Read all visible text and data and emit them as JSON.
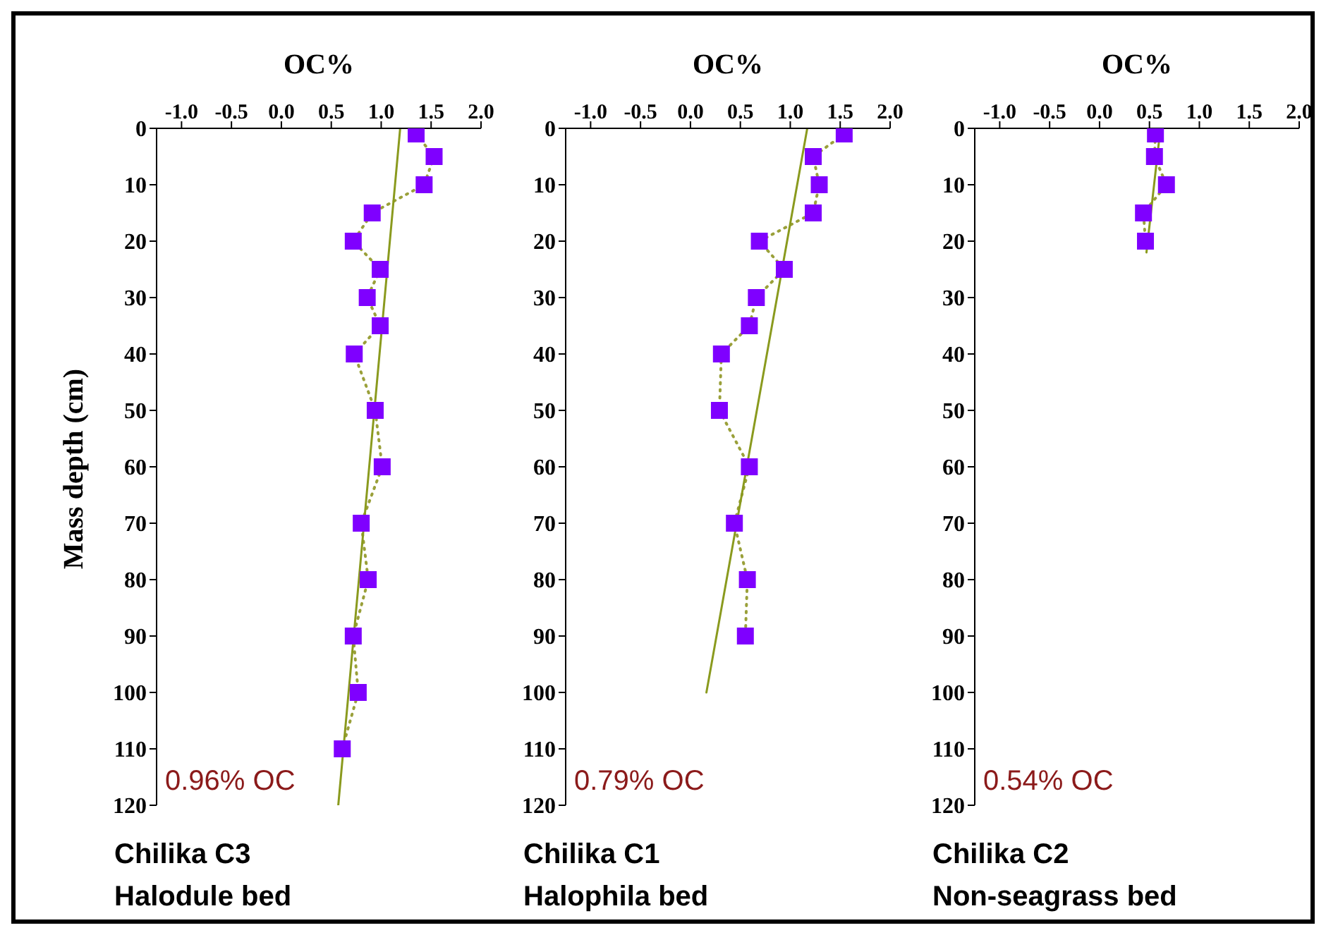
{
  "chart_data": [
    {
      "type": "scatter",
      "xlabel": "OC%",
      "ylabel": "Mass depth (cm)",
      "xlim": [
        -1.25,
        2.0
      ],
      "xticks": [
        {
          "value": -1,
          "label": "-1.0"
        },
        -0.5,
        {
          "value": 0,
          "label": "0.0"
        },
        0.5,
        {
          "value": 1,
          "label": "1.0"
        },
        1.5,
        {
          "value": 2,
          "label": "2.0"
        }
      ],
      "ylim": [
        120,
        0
      ],
      "yticks": [
        0,
        10,
        20,
        30,
        40,
        50,
        60,
        70,
        80,
        90,
        100,
        110,
        120
      ],
      "annotations": [
        "0.96% OC",
        "Chilika C3",
        "Halodule bed"
      ],
      "series": [
        {
          "marker": "square",
          "color": "#7f00ff",
          "x": [
            1.35,
            1.53,
            1.43,
            0.91,
            0.72,
            0.99,
            0.86,
            0.99,
            0.73,
            0.94,
            1.01,
            0.8,
            0.87,
            0.72,
            0.77,
            0.61
          ],
          "values": [
            1,
            5,
            10,
            15,
            20,
            25,
            30,
            35,
            40,
            50,
            60,
            70,
            80,
            90,
            100,
            110
          ]
        },
        {
          "type": "line",
          "marker": "none",
          "line_style": "dotted",
          "color": "#9aa03a",
          "x": [
            1.35,
            1.53,
            1.43,
            0.91,
            0.72,
            0.99,
            0.86,
            0.99,
            0.73,
            0.94,
            1.01,
            0.8,
            0.87,
            0.72,
            0.77,
            0.61
          ],
          "values": [
            1,
            5,
            10,
            15,
            20,
            25,
            30,
            35,
            40,
            50,
            60,
            70,
            80,
            90,
            100,
            110
          ]
        },
        {
          "type": "line",
          "marker": "none",
          "line_style": "solid",
          "color": "#8a9a1e",
          "x": [
            1.19,
            0.57
          ],
          "values": [
            0,
            120
          ]
        }
      ]
    },
    {
      "type": "scatter",
      "xlabel": "OC%",
      "xlim": [
        -1.25,
        2.0
      ],
      "xticks": [
        {
          "value": -1,
          "label": "-1.0"
        },
        -0.5,
        {
          "value": 0,
          "label": "0.0"
        },
        0.5,
        {
          "value": 1,
          "label": "1.0"
        },
        1.5,
        {
          "value": 2,
          "label": "2.0"
        }
      ],
      "ylim": [
        120,
        0
      ],
      "yticks": [
        0,
        10,
        20,
        30,
        40,
        50,
        60,
        70,
        80,
        90,
        100,
        110,
        120
      ],
      "annotations": [
        "0.79% OC",
        "Chilika C1",
        "Halophila bed"
      ],
      "series": [
        {
          "marker": "square",
          "color": "#7f00ff",
          "x": [
            1.54,
            1.23,
            1.29,
            1.23,
            0.69,
            0.94,
            0.66,
            0.59,
            0.31,
            0.29,
            0.59,
            0.44,
            0.57,
            0.55
          ],
          "values": [
            1,
            5,
            10,
            15,
            20,
            25,
            30,
            35,
            40,
            50,
            60,
            70,
            80,
            90
          ]
        },
        {
          "type": "line",
          "marker": "none",
          "line_style": "dotted",
          "color": "#9aa03a",
          "x": [
            1.54,
            1.23,
            1.29,
            1.23,
            0.69,
            0.94,
            0.66,
            0.59,
            0.31,
            0.29,
            0.59,
            0.44,
            0.57,
            0.55
          ],
          "values": [
            1,
            5,
            10,
            15,
            20,
            25,
            30,
            35,
            40,
            50,
            60,
            70,
            80,
            90
          ]
        },
        {
          "type": "line",
          "marker": "none",
          "line_style": "solid",
          "color": "#8a9a1e",
          "x": [
            1.17,
            0.16
          ],
          "values": [
            0,
            100
          ]
        }
      ]
    },
    {
      "type": "scatter",
      "xlabel": "OC%",
      "xlim": [
        -1.25,
        2.0
      ],
      "xticks": [
        {
          "value": -1,
          "label": "-1.0"
        },
        -0.5,
        {
          "value": 0,
          "label": "0.0"
        },
        0.5,
        {
          "value": 1,
          "label": "1.0"
        },
        1.5,
        {
          "value": 2,
          "label": "2.0"
        }
      ],
      "ylim": [
        120,
        0
      ],
      "yticks": [
        0,
        10,
        20,
        30,
        40,
        50,
        60,
        70,
        80,
        90,
        100,
        110,
        120
      ],
      "annotations": [
        "0.54% OC",
        "Chilika C2",
        "Non-seagrass bed"
      ],
      "series": [
        {
          "marker": "square",
          "color": "#7f00ff",
          "x": [
            0.56,
            0.55,
            0.67,
            0.44,
            0.46
          ],
          "values": [
            1,
            5,
            10,
            15,
            20
          ]
        },
        {
          "type": "line",
          "marker": "none",
          "line_style": "dotted",
          "color": "#9aa03a",
          "x": [
            0.56,
            0.55,
            0.67,
            0.44,
            0.46
          ],
          "values": [
            1,
            5,
            10,
            15,
            20
          ]
        },
        {
          "type": "line",
          "marker": "none",
          "line_style": "solid",
          "color": "#8a9a1e",
          "x": [
            0.61,
            0.47
          ],
          "values": [
            0,
            22
          ]
        }
      ]
    }
  ]
}
